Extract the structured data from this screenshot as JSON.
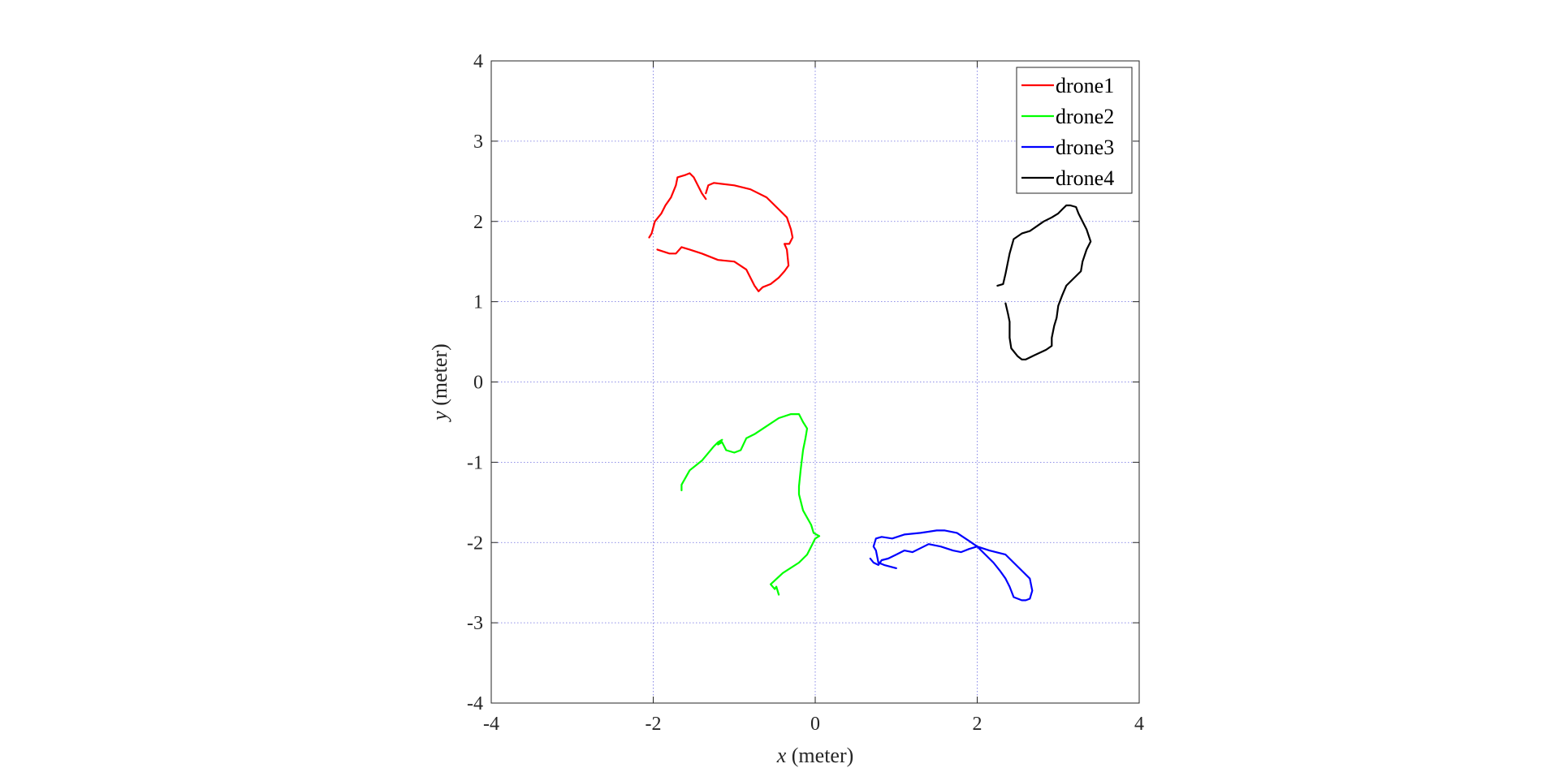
{
  "chart_data": {
    "type": "line",
    "xlabel_var": "x",
    "xlabel_unit": " (meter)",
    "ylabel_var": "y",
    "ylabel_unit": " (meter)",
    "xlim": [
      -4,
      4
    ],
    "ylim": [
      -4,
      4
    ],
    "xticks": [
      -4,
      -2,
      0,
      2,
      4
    ],
    "yticks": [
      -4,
      -3,
      -2,
      -1,
      0,
      1,
      2,
      3,
      4
    ],
    "xtick_labels": [
      "-4",
      "-2",
      "0",
      "2",
      "4"
    ],
    "ytick_labels": [
      "-4",
      "-3",
      "-2",
      "-1",
      "0",
      "1",
      "2",
      "3",
      "4"
    ],
    "grid": true,
    "legend_position": "top-right",
    "series": [
      {
        "name": "drone1",
        "color": "#ff0000",
        "x": [
          -1.35,
          -1.4,
          -1.45,
          -1.5,
          -1.55,
          -1.6,
          -1.7,
          -1.72,
          -1.78,
          -1.85,
          -1.9,
          -1.98,
          -2.02,
          -2.05
        ],
        "y": [
          2.28,
          2.35,
          2.45,
          2.55,
          2.6,
          2.58,
          2.55,
          2.45,
          2.3,
          2.2,
          2.1,
          2.0,
          1.85,
          1.8
        ],
        "x2": [
          -1.35,
          -1.32,
          -1.25,
          -1.0,
          -0.8,
          -0.6,
          -0.45,
          -0.35,
          -0.3,
          -0.28,
          -0.32,
          -0.38,
          -0.35,
          -0.33,
          -0.38,
          -0.45,
          -0.55,
          -0.65,
          -0.7,
          -0.75,
          -0.8,
          -0.85,
          -1.0,
          -1.2,
          -1.4,
          -1.55,
          -1.65,
          -1.72,
          -1.8,
          -1.95
        ],
        "y2": [
          2.35,
          2.45,
          2.48,
          2.45,
          2.4,
          2.3,
          2.15,
          2.05,
          1.9,
          1.8,
          1.72,
          1.72,
          1.65,
          1.45,
          1.38,
          1.3,
          1.22,
          1.18,
          1.13,
          1.2,
          1.3,
          1.4,
          1.5,
          1.52,
          1.6,
          1.65,
          1.68,
          1.6,
          1.6,
          1.65
        ]
      },
      {
        "name": "drone2",
        "color": "#00ff00",
        "x": [
          -0.45,
          -0.48,
          -0.5,
          -0.55,
          -0.4,
          -0.2,
          -0.1,
          -0.05,
          0.0,
          0.05,
          -0.02,
          -0.05,
          -0.15,
          -0.2,
          -0.2,
          -0.18,
          -0.15,
          -0.12,
          -0.1,
          -0.15,
          -0.2,
          -0.3,
          -0.45,
          -0.6,
          -0.75,
          -0.85,
          -0.92,
          -1.0,
          -1.1,
          -1.15,
          -1.2,
          -1.15,
          -1.2,
          -1.25,
          -1.4,
          -1.55,
          -1.65,
          -1.65
        ],
        "y": [
          -2.65,
          -2.55,
          -2.58,
          -2.52,
          -2.38,
          -2.25,
          -2.15,
          -2.05,
          -1.95,
          -1.92,
          -1.88,
          -1.78,
          -1.6,
          -1.4,
          -1.3,
          -1.1,
          -0.85,
          -0.7,
          -0.58,
          -0.5,
          -0.4,
          -0.4,
          -0.45,
          -0.55,
          -0.65,
          -0.7,
          -0.85,
          -0.88,
          -0.85,
          -0.75,
          -0.78,
          -0.72,
          -0.75,
          -0.8,
          -0.98,
          -1.1,
          -1.28,
          -1.35
        ]
      },
      {
        "name": "drone3",
        "color": "#0000ff",
        "x": [
          1.0,
          0.85,
          0.78,
          0.75,
          0.72,
          0.75,
          0.82,
          0.95,
          1.1,
          1.3,
          1.5,
          1.6,
          1.75,
          1.9,
          2.0,
          2.15,
          2.35,
          2.55,
          2.65,
          2.68,
          2.65,
          2.6,
          2.55,
          2.45,
          2.4,
          2.35,
          2.28,
          2.2,
          2.1,
          2.0,
          1.9,
          1.8,
          1.7,
          1.55,
          1.4,
          1.3,
          1.2,
          1.1,
          1.0,
          0.9,
          0.82,
          0.78,
          0.72,
          0.68
        ],
        "y": [
          -2.32,
          -2.28,
          -2.25,
          -2.1,
          -2.05,
          -1.95,
          -1.93,
          -1.95,
          -1.9,
          -1.88,
          -1.85,
          -1.85,
          -1.88,
          -1.98,
          -2.05,
          -2.1,
          -2.15,
          -2.35,
          -2.45,
          -2.6,
          -2.7,
          -2.72,
          -2.72,
          -2.68,
          -2.55,
          -2.45,
          -2.35,
          -2.25,
          -2.15,
          -2.05,
          -2.08,
          -2.12,
          -2.1,
          -2.05,
          -2.02,
          -2.07,
          -2.12,
          -2.1,
          -2.15,
          -2.2,
          -2.22,
          -2.28,
          -2.25,
          -2.2
        ]
      },
      {
        "name": "drone4",
        "color": "#000000",
        "x": [
          2.25,
          2.32,
          2.35,
          2.38,
          2.4,
          2.45,
          2.55,
          2.65,
          2.75,
          2.82,
          2.92,
          3.0,
          3.05,
          3.1,
          3.15,
          3.22,
          3.25,
          3.3,
          3.35,
          3.4,
          3.35,
          3.3,
          3.28,
          3.2,
          3.1,
          3.05,
          3.0,
          2.98,
          2.95,
          2.92,
          2.92,
          2.85,
          2.7,
          2.6,
          2.55,
          2.5,
          2.42,
          2.4,
          2.4,
          2.38,
          2.35
        ],
        "y": [
          1.2,
          1.22,
          1.35,
          1.5,
          1.6,
          1.78,
          1.85,
          1.88,
          1.95,
          2.0,
          2.05,
          2.1,
          2.15,
          2.2,
          2.2,
          2.18,
          2.1,
          2.0,
          1.9,
          1.75,
          1.65,
          1.5,
          1.38,
          1.3,
          1.2,
          1.08,
          0.95,
          0.8,
          0.7,
          0.55,
          0.45,
          0.4,
          0.33,
          0.28,
          0.28,
          0.32,
          0.42,
          0.55,
          0.75,
          0.85,
          0.98
        ]
      }
    ]
  }
}
